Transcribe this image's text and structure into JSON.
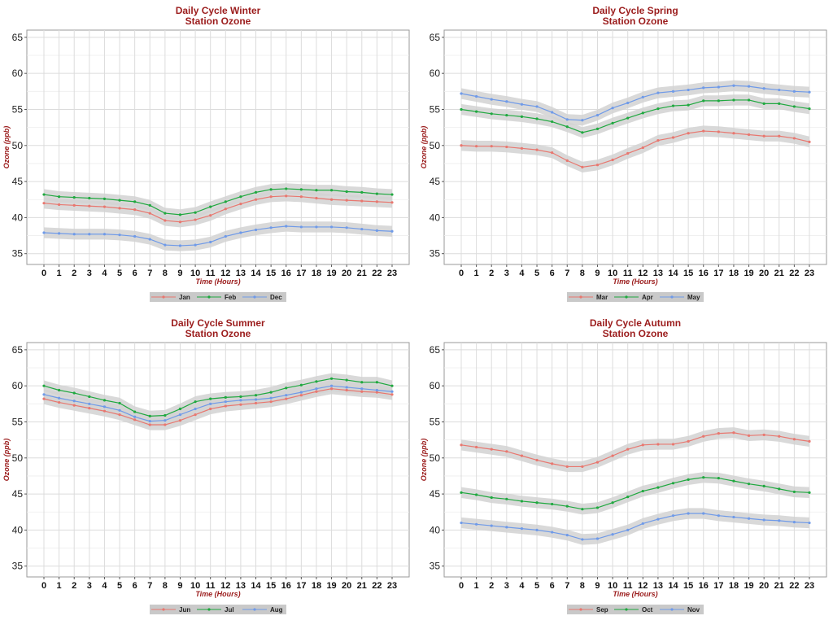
{
  "colors": {
    "red": "#e8776f",
    "green": "#1fa83f",
    "blue": "#6f9ae8",
    "title": "#9b1c1c",
    "band": "#d2d2d2",
    "grid": "#dcdcdc",
    "legend_bg": "#c9c9c9"
  },
  "chart_data": [
    {
      "type": "line",
      "title": [
        "Daily Cycle Winter",
        "Station Ozone"
      ],
      "xlabel": "Time (Hours)",
      "ylabel": "Ozone (ppb)",
      "ylim": [
        33.5,
        66
      ],
      "yticks": [
        35,
        40,
        45,
        50,
        55,
        60,
        65
      ],
      "x": [
        0,
        1,
        2,
        3,
        4,
        5,
        6,
        7,
        8,
        9,
        10,
        11,
        12,
        13,
        14,
        15,
        16,
        17,
        18,
        19,
        20,
        21,
        22,
        23
      ],
      "series": [
        {
          "name": "Jan",
          "color": "red",
          "values": [
            42.0,
            41.8,
            41.7,
            41.6,
            41.5,
            41.3,
            41.1,
            40.6,
            39.6,
            39.4,
            39.7,
            40.3,
            41.2,
            41.9,
            42.5,
            42.9,
            43.0,
            42.9,
            42.7,
            42.5,
            42.4,
            42.3,
            42.2,
            42.1
          ]
        },
        {
          "name": "Feb",
          "color": "green",
          "values": [
            43.2,
            42.9,
            42.8,
            42.7,
            42.6,
            42.4,
            42.2,
            41.7,
            40.6,
            40.4,
            40.7,
            41.5,
            42.2,
            42.9,
            43.5,
            43.9,
            44.0,
            43.9,
            43.8,
            43.8,
            43.6,
            43.5,
            43.3,
            43.2
          ]
        },
        {
          "name": "Dec",
          "color": "blue",
          "values": [
            37.9,
            37.8,
            37.7,
            37.7,
            37.7,
            37.6,
            37.4,
            37.0,
            36.2,
            36.1,
            36.2,
            36.6,
            37.4,
            37.9,
            38.3,
            38.6,
            38.8,
            38.7,
            38.7,
            38.7,
            38.6,
            38.4,
            38.2,
            38.1
          ]
        }
      ]
    },
    {
      "type": "line",
      "title": [
        "Daily Cycle Spring",
        "Station Ozone"
      ],
      "xlabel": "Time (Hours)",
      "ylabel": "Ozone (ppb)",
      "ylim": [
        33.5,
        66
      ],
      "yticks": [
        35,
        40,
        45,
        50,
        55,
        60,
        65
      ],
      "x": [
        0,
        1,
        2,
        3,
        4,
        5,
        6,
        7,
        8,
        9,
        10,
        11,
        12,
        13,
        14,
        15,
        16,
        17,
        18,
        19,
        20,
        21,
        22,
        23
      ],
      "series": [
        {
          "name": "Mar",
          "color": "red",
          "values": [
            50.0,
            49.9,
            49.9,
            49.8,
            49.6,
            49.4,
            49.0,
            47.9,
            47.0,
            47.3,
            48.0,
            48.9,
            49.7,
            50.7,
            51.1,
            51.7,
            52.0,
            51.9,
            51.7,
            51.5,
            51.3,
            51.3,
            51.0,
            50.5
          ]
        },
        {
          "name": "Apr",
          "color": "green",
          "values": [
            55.0,
            54.7,
            54.4,
            54.2,
            54.0,
            53.7,
            53.3,
            52.6,
            51.8,
            52.3,
            53.1,
            53.8,
            54.5,
            55.1,
            55.5,
            55.6,
            56.2,
            56.2,
            56.3,
            56.3,
            55.8,
            55.8,
            55.4,
            55.1
          ]
        },
        {
          "name": "May",
          "color": "blue",
          "values": [
            57.2,
            56.8,
            56.4,
            56.1,
            55.7,
            55.4,
            54.6,
            53.6,
            53.5,
            54.2,
            55.2,
            55.9,
            56.7,
            57.3,
            57.5,
            57.7,
            58.0,
            58.1,
            58.3,
            58.2,
            57.9,
            57.7,
            57.5,
            57.4
          ]
        }
      ]
    },
    {
      "type": "line",
      "title": [
        "Daily Cycle Summer",
        "Station Ozone"
      ],
      "xlabel": "Time (Hours)",
      "ylabel": "Ozone (ppb)",
      "ylim": [
        33.5,
        66
      ],
      "yticks": [
        35,
        40,
        45,
        50,
        55,
        60,
        65
      ],
      "x": [
        0,
        1,
        2,
        3,
        4,
        5,
        6,
        7,
        8,
        9,
        10,
        11,
        12,
        13,
        14,
        15,
        16,
        17,
        18,
        19,
        20,
        21,
        22,
        23
      ],
      "series": [
        {
          "name": "Jun",
          "color": "red",
          "values": [
            58.2,
            57.7,
            57.3,
            56.9,
            56.5,
            56.0,
            55.3,
            54.6,
            54.6,
            55.2,
            56.0,
            56.8,
            57.2,
            57.4,
            57.6,
            57.8,
            58.2,
            58.7,
            59.2,
            59.6,
            59.4,
            59.2,
            59.1,
            58.8
          ]
        },
        {
          "name": "Jul",
          "color": "green",
          "values": [
            60.0,
            59.4,
            59.0,
            58.5,
            58.0,
            57.6,
            56.4,
            55.8,
            55.9,
            56.8,
            57.8,
            58.2,
            58.4,
            58.5,
            58.7,
            59.1,
            59.7,
            60.1,
            60.6,
            61.0,
            60.8,
            60.5,
            60.5,
            60.0
          ]
        },
        {
          "name": "Aug",
          "color": "blue",
          "values": [
            58.8,
            58.3,
            57.9,
            57.5,
            57.1,
            56.6,
            55.7,
            55.1,
            55.2,
            56.0,
            56.8,
            57.5,
            57.8,
            58.0,
            58.1,
            58.3,
            58.7,
            59.1,
            59.6,
            60.0,
            59.8,
            59.6,
            59.4,
            59.2
          ]
        }
      ]
    },
    {
      "type": "line",
      "title": [
        "Daily Cycle Autumn",
        "Station Ozone"
      ],
      "xlabel": "Time (Hours)",
      "ylabel": "Ozone (ppb)",
      "ylim": [
        33.5,
        66
      ],
      "yticks": [
        35,
        40,
        45,
        50,
        55,
        60,
        65
      ],
      "x": [
        0,
        1,
        2,
        3,
        4,
        5,
        6,
        7,
        8,
        9,
        10,
        11,
        12,
        13,
        14,
        15,
        16,
        17,
        18,
        19,
        20,
        21,
        22,
        23
      ],
      "series": [
        {
          "name": "Sep",
          "color": "red",
          "values": [
            51.8,
            51.5,
            51.2,
            50.9,
            50.3,
            49.7,
            49.2,
            48.8,
            48.8,
            49.4,
            50.3,
            51.2,
            51.8,
            51.9,
            51.9,
            52.3,
            53.0,
            53.4,
            53.5,
            53.1,
            53.2,
            53.0,
            52.6,
            52.3
          ]
        },
        {
          "name": "Oct",
          "color": "green",
          "values": [
            45.2,
            44.9,
            44.5,
            44.3,
            44.0,
            43.8,
            43.6,
            43.3,
            42.9,
            43.1,
            43.8,
            44.6,
            45.4,
            45.9,
            46.5,
            47.0,
            47.3,
            47.2,
            46.8,
            46.4,
            46.1,
            45.7,
            45.3,
            45.2
          ]
        },
        {
          "name": "Nov",
          "color": "blue",
          "values": [
            41.0,
            40.8,
            40.6,
            40.4,
            40.2,
            40.0,
            39.7,
            39.3,
            38.7,
            38.8,
            39.4,
            40.0,
            40.9,
            41.5,
            42.0,
            42.3,
            42.3,
            42.0,
            41.8,
            41.6,
            41.4,
            41.3,
            41.1,
            41.0
          ]
        }
      ]
    }
  ]
}
